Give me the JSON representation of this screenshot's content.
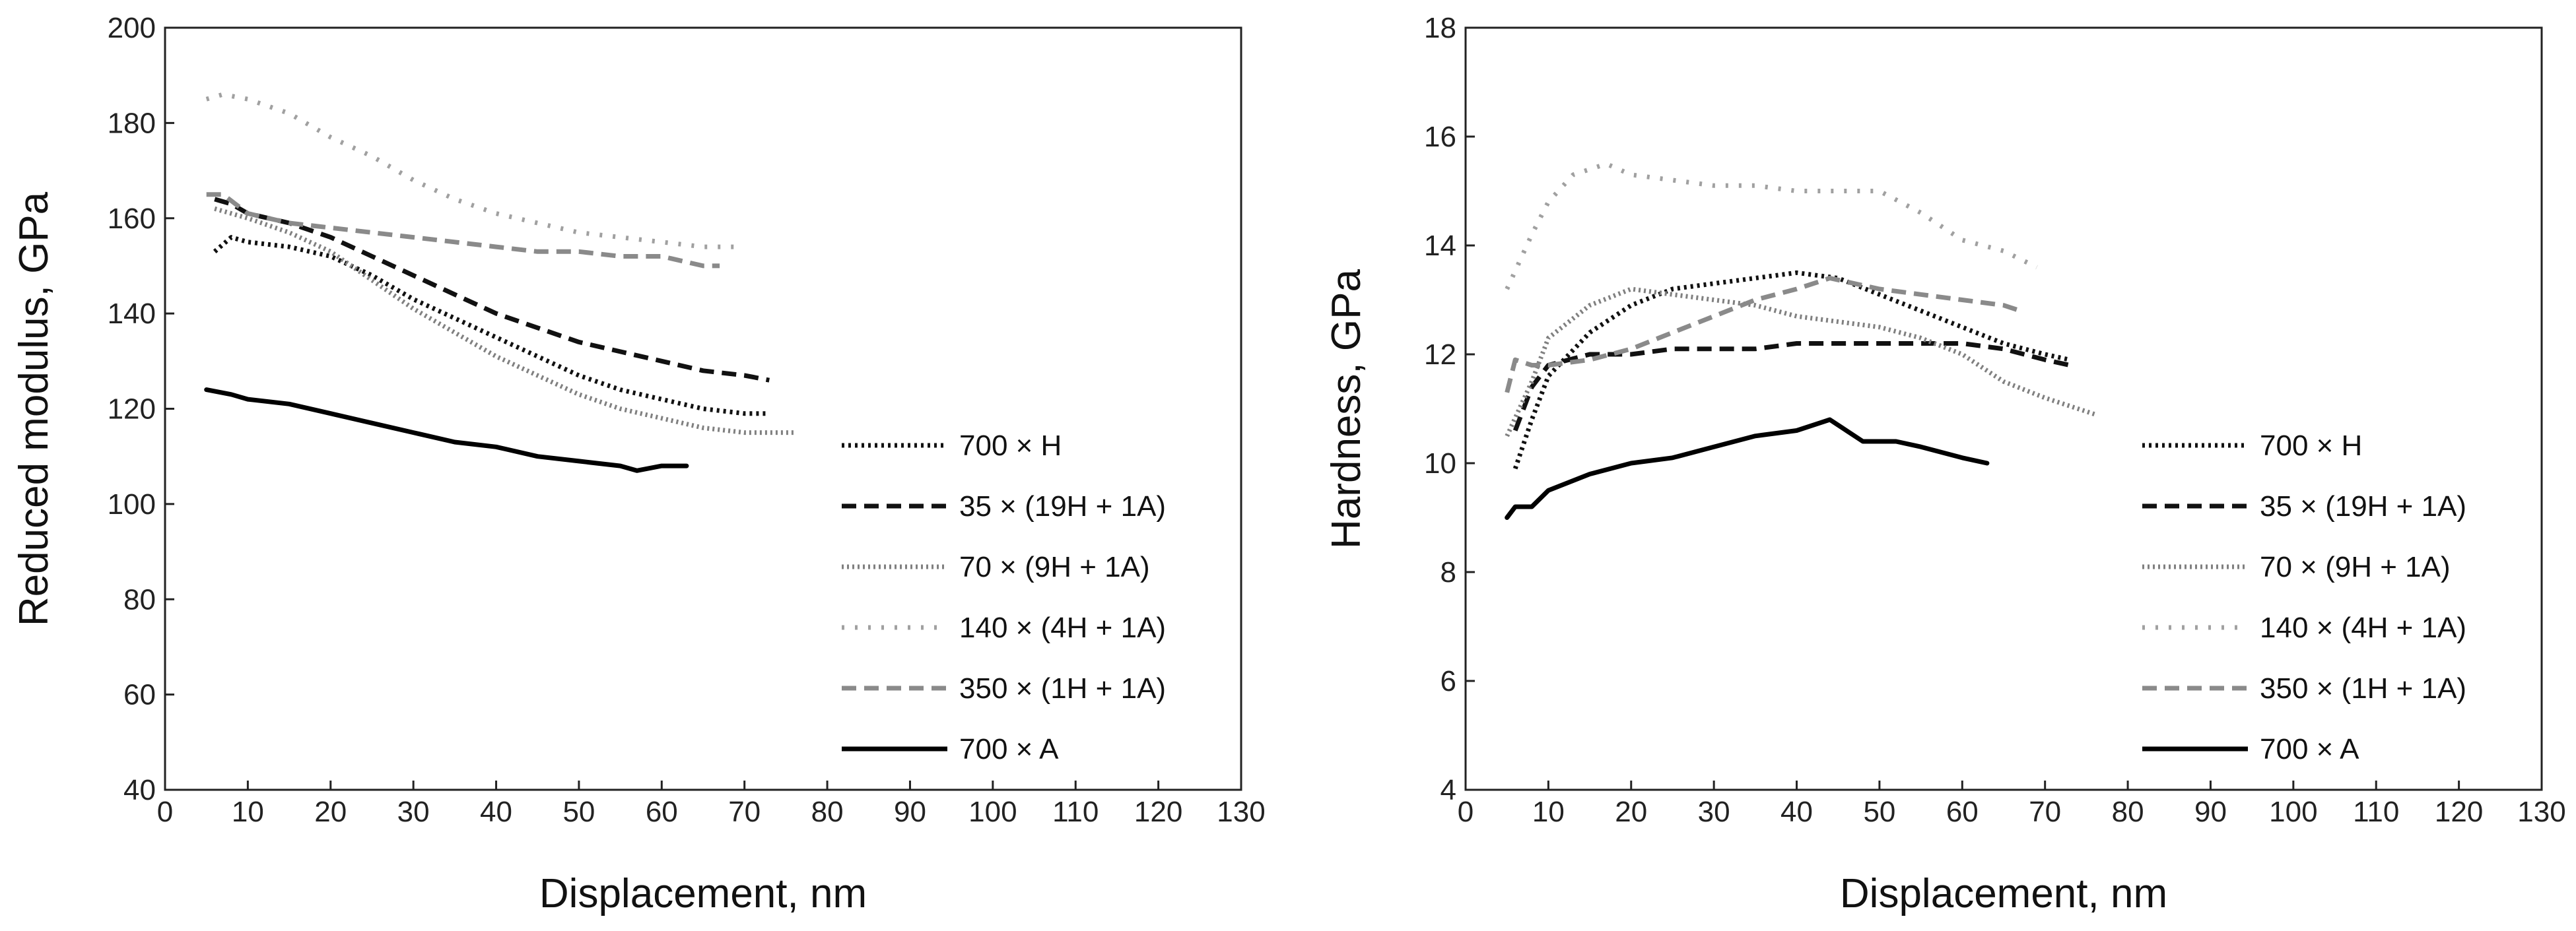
{
  "chart_data": [
    {
      "type": "line",
      "xlabel": "Displacement, nm",
      "ylabel": "Reduced modulus, GPa",
      "xlim": [
        0,
        130
      ],
      "ylim": [
        40,
        200
      ],
      "xticks": [
        0,
        10,
        20,
        30,
        40,
        50,
        60,
        70,
        80,
        90,
        100,
        110,
        120,
        130
      ],
      "yticks": [
        40,
        60,
        80,
        100,
        120,
        140,
        160,
        180,
        200
      ],
      "grid": false,
      "legend_position": "right-middle",
      "series": [
        {
          "name": "700 × H",
          "style": "dotted-bold",
          "color": "#111111",
          "points": [
            [
              6,
              153
            ],
            [
              8,
              156
            ],
            [
              10,
              155
            ],
            [
              15,
              154
            ],
            [
              20,
              152
            ],
            [
              25,
              148
            ],
            [
              30,
              143
            ],
            [
              35,
              139
            ],
            [
              40,
              135
            ],
            [
              45,
              131
            ],
            [
              50,
              127
            ],
            [
              55,
              124
            ],
            [
              60,
              122
            ],
            [
              65,
              120
            ],
            [
              70,
              119
            ],
            [
              73,
              119
            ]
          ]
        },
        {
          "name": "35 × (19H + 1A)",
          "style": "dashed",
          "color": "#111111",
          "points": [
            [
              6,
              164
            ],
            [
              8,
              163
            ],
            [
              10,
              161
            ],
            [
              15,
              159
            ],
            [
              20,
              156
            ],
            [
              25,
              152
            ],
            [
              30,
              148
            ],
            [
              35,
              144
            ],
            [
              40,
              140
            ],
            [
              45,
              137
            ],
            [
              50,
              134
            ],
            [
              55,
              132
            ],
            [
              60,
              130
            ],
            [
              65,
              128
            ],
            [
              70,
              127
            ],
            [
              73,
              126
            ]
          ]
        },
        {
          "name": "70 × (9H + 1A)",
          "style": "dotted",
          "color": "#808080",
          "points": [
            [
              6,
              162
            ],
            [
              8,
              161
            ],
            [
              10,
              160
            ],
            [
              15,
              157
            ],
            [
              20,
              153
            ],
            [
              25,
              147
            ],
            [
              30,
              141
            ],
            [
              35,
              136
            ],
            [
              40,
              131
            ],
            [
              45,
              127
            ],
            [
              50,
              123
            ],
            [
              55,
              120
            ],
            [
              60,
              118
            ],
            [
              65,
              116
            ],
            [
              70,
              115
            ],
            [
              76,
              115
            ]
          ]
        },
        {
          "name": "140 × (4H + 1A)",
          "style": "sparse-dotted",
          "color": "#a0a0a0",
          "points": [
            [
              5,
              185
            ],
            [
              7,
              186
            ],
            [
              10,
              185
            ],
            [
              15,
              182
            ],
            [
              20,
              177
            ],
            [
              25,
              173
            ],
            [
              30,
              168
            ],
            [
              35,
              164
            ],
            [
              40,
              161
            ],
            [
              45,
              159
            ],
            [
              50,
              157
            ],
            [
              55,
              156
            ],
            [
              60,
              155
            ],
            [
              65,
              154
            ],
            [
              69,
              154
            ]
          ]
        },
        {
          "name": "350 × (1H + 1A)",
          "style": "dashed",
          "color": "#8a8a8a",
          "points": [
            [
              5,
              165
            ],
            [
              7,
              165
            ],
            [
              10,
              161
            ],
            [
              15,
              159
            ],
            [
              20,
              158
            ],
            [
              25,
              157
            ],
            [
              30,
              156
            ],
            [
              35,
              155
            ],
            [
              40,
              154
            ],
            [
              45,
              153
            ],
            [
              50,
              153
            ],
            [
              55,
              152
            ],
            [
              60,
              152
            ],
            [
              65,
              150
            ],
            [
              67,
              150
            ]
          ]
        },
        {
          "name": "700 × A",
          "style": "solid",
          "color": "#000000",
          "points": [
            [
              5,
              124
            ],
            [
              8,
              123
            ],
            [
              10,
              122
            ],
            [
              15,
              121
            ],
            [
              20,
              119
            ],
            [
              25,
              117
            ],
            [
              30,
              115
            ],
            [
              35,
              113
            ],
            [
              40,
              112
            ],
            [
              45,
              110
            ],
            [
              50,
              109
            ],
            [
              55,
              108
            ],
            [
              57,
              107
            ],
            [
              60,
              108
            ],
            [
              63,
              108
            ]
          ]
        }
      ]
    },
    {
      "type": "line",
      "xlabel": "Displacement, nm",
      "ylabel": "Hardness, GPa",
      "xlim": [
        0,
        130
      ],
      "ylim": [
        4,
        18
      ],
      "xticks": [
        0,
        10,
        20,
        30,
        40,
        50,
        60,
        70,
        80,
        90,
        100,
        110,
        120,
        130
      ],
      "yticks": [
        4,
        6,
        8,
        10,
        12,
        14,
        16,
        18
      ],
      "grid": false,
      "legend_position": "right-middle",
      "series": [
        {
          "name": "700 × H",
          "style": "dotted-bold",
          "color": "#111111",
          "points": [
            [
              6,
              9.9
            ],
            [
              8,
              10.8
            ],
            [
              10,
              11.6
            ],
            [
              15,
              12.4
            ],
            [
              20,
              12.9
            ],
            [
              25,
              13.2
            ],
            [
              30,
              13.3
            ],
            [
              35,
              13.4
            ],
            [
              40,
              13.5
            ],
            [
              45,
              13.4
            ],
            [
              50,
              13.1
            ],
            [
              55,
              12.8
            ],
            [
              60,
              12.5
            ],
            [
              65,
              12.2
            ],
            [
              70,
              12.0
            ],
            [
              73,
              11.9
            ]
          ]
        },
        {
          "name": "35 × (19H + 1A)",
          "style": "dashed",
          "color": "#111111",
          "points": [
            [
              6,
              10.6
            ],
            [
              8,
              11.4
            ],
            [
              10,
              11.8
            ],
            [
              15,
              12.0
            ],
            [
              20,
              12.0
            ],
            [
              25,
              12.1
            ],
            [
              30,
              12.1
            ],
            [
              35,
              12.1
            ],
            [
              40,
              12.2
            ],
            [
              45,
              12.2
            ],
            [
              50,
              12.2
            ],
            [
              55,
              12.2
            ],
            [
              60,
              12.2
            ],
            [
              65,
              12.1
            ],
            [
              70,
              11.9
            ],
            [
              73,
              11.8
            ]
          ]
        },
        {
          "name": "70 × (9H + 1A)",
          "style": "dotted",
          "color": "#808080",
          "points": [
            [
              5,
              10.5
            ],
            [
              8,
              11.5
            ],
            [
              10,
              12.3
            ],
            [
              15,
              12.9
            ],
            [
              20,
              13.2
            ],
            [
              25,
              13.1
            ],
            [
              30,
              13.0
            ],
            [
              35,
              12.9
            ],
            [
              40,
              12.7
            ],
            [
              45,
              12.6
            ],
            [
              50,
              12.5
            ],
            [
              55,
              12.3
            ],
            [
              60,
              12.0
            ],
            [
              65,
              11.5
            ],
            [
              70,
              11.2
            ],
            [
              76,
              10.9
            ]
          ]
        },
        {
          "name": "140 × (4H + 1A)",
          "style": "sparse-dotted",
          "color": "#a0a0a0",
          "points": [
            [
              5,
              13.2
            ],
            [
              8,
              14.2
            ],
            [
              10,
              14.8
            ],
            [
              13,
              15.3
            ],
            [
              17,
              15.5
            ],
            [
              20,
              15.3
            ],
            [
              25,
              15.2
            ],
            [
              30,
              15.1
            ],
            [
              35,
              15.1
            ],
            [
              40,
              15.0
            ],
            [
              45,
              15.0
            ],
            [
              50,
              15.0
            ],
            [
              55,
              14.6
            ],
            [
              60,
              14.1
            ],
            [
              65,
              13.9
            ],
            [
              69,
              13.6
            ]
          ]
        },
        {
          "name": "350 × (1H + 1A)",
          "style": "dashed",
          "color": "#8a8a8a",
          "points": [
            [
              5,
              11.3
            ],
            [
              6,
              11.9
            ],
            [
              8,
              11.8
            ],
            [
              10,
              11.8
            ],
            [
              15,
              11.9
            ],
            [
              20,
              12.1
            ],
            [
              25,
              12.4
            ],
            [
              30,
              12.7
            ],
            [
              35,
              13.0
            ],
            [
              40,
              13.2
            ],
            [
              44,
              13.4
            ],
            [
              50,
              13.2
            ],
            [
              55,
              13.1
            ],
            [
              60,
              13.0
            ],
            [
              65,
              12.9
            ],
            [
              67,
              12.8
            ]
          ]
        },
        {
          "name": "700 × A",
          "style": "solid",
          "color": "#000000",
          "points": [
            [
              5,
              9.0
            ],
            [
              6,
              9.2
            ],
            [
              8,
              9.2
            ],
            [
              10,
              9.5
            ],
            [
              15,
              9.8
            ],
            [
              20,
              10.0
            ],
            [
              25,
              10.1
            ],
            [
              30,
              10.3
            ],
            [
              35,
              10.5
            ],
            [
              40,
              10.6
            ],
            [
              44,
              10.8
            ],
            [
              48,
              10.4
            ],
            [
              52,
              10.4
            ],
            [
              55,
              10.3
            ],
            [
              60,
              10.1
            ],
            [
              63,
              10.0
            ]
          ]
        }
      ]
    }
  ]
}
